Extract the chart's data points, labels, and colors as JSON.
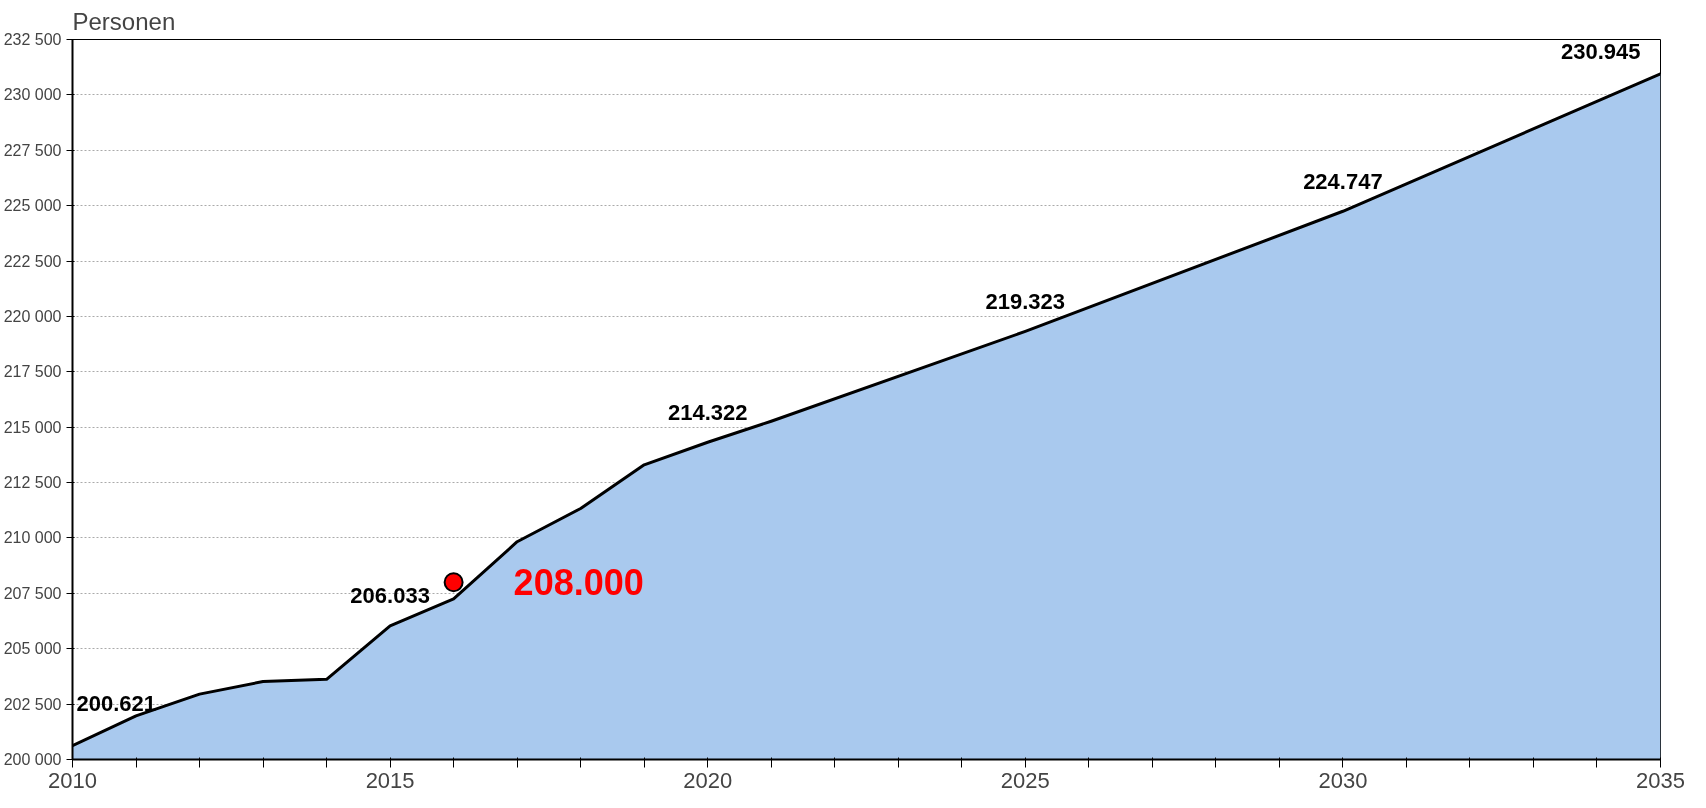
{
  "chart_data": {
    "type": "area",
    "ylabel": "Personen",
    "x": [
      2010,
      2011,
      2012,
      2013,
      2014,
      2015,
      2016,
      2017,
      2018,
      2019,
      2020,
      2021,
      2025,
      2030,
      2035
    ],
    "series": [
      {
        "color": "#a9c9ee",
        "values": [
          200621,
          201970,
          202950,
          203520,
          203620,
          206033,
          207250,
          209830,
          211330,
          213300,
          214322,
          215270,
          219323,
          224747,
          230945
        ],
        "value_labels": [
          "200.621",
          null,
          null,
          null,
          null,
          "206.033",
          null,
          null,
          null,
          null,
          "214.322",
          null,
          "219.323",
          "224.747",
          "230.945"
        ]
      },
      {
        "type": "scatter",
        "marker": "circle",
        "color": "#ff0000",
        "x": [
          2016
        ],
        "values": [
          208000
        ],
        "value_labels": [
          "208.000"
        ]
      }
    ],
    "xlim": [
      2010,
      2035
    ],
    "ylim": [
      200000,
      232500
    ],
    "xticks": [
      2010,
      {
        "value": 2011,
        "label": null
      },
      {
        "value": 2012,
        "label": null
      },
      {
        "value": 2013,
        "label": null
      },
      {
        "value": 2014,
        "label": null
      },
      2015,
      {
        "value": 2016,
        "label": null
      },
      {
        "value": 2017,
        "label": null
      },
      {
        "value": 2018,
        "label": null
      },
      {
        "value": 2019,
        "label": null
      },
      2020,
      {
        "value": 2021,
        "label": null
      },
      {
        "value": 2022,
        "label": null
      },
      {
        "value": 2023,
        "label": null
      },
      {
        "value": 2024,
        "label": null
      },
      2025,
      {
        "value": 2026,
        "label": null
      },
      {
        "value": 2027,
        "label": null
      },
      {
        "value": 2028,
        "label": null
      },
      {
        "value": 2029,
        "label": null
      },
      2030,
      {
        "value": 2031,
        "label": null
      },
      {
        "value": 2032,
        "label": null
      },
      {
        "value": 2033,
        "label": null
      },
      {
        "value": 2034,
        "label": null
      },
      2035
    ],
    "yticks": [
      {
        "value": 200000,
        "label": "200 000"
      },
      {
        "value": 202500,
        "label": "202 500"
      },
      {
        "value": 205000,
        "label": "205 000"
      },
      {
        "value": 207500,
        "label": "207 500"
      },
      {
        "value": 210000,
        "label": "210 000"
      },
      {
        "value": 212500,
        "label": "212 500"
      },
      {
        "value": 215000,
        "label": "215 000"
      },
      {
        "value": 217500,
        "label": "217 500"
      },
      {
        "value": 220000,
        "label": "220 000"
      },
      {
        "value": 222500,
        "label": "222 500"
      },
      {
        "value": 225000,
        "label": "225 000"
      },
      {
        "value": 227500,
        "label": "227 500"
      },
      {
        "value": 230000,
        "label": "230 000"
      },
      {
        "value": 232500,
        "label": "232 500"
      }
    ],
    "grid": "y"
  }
}
